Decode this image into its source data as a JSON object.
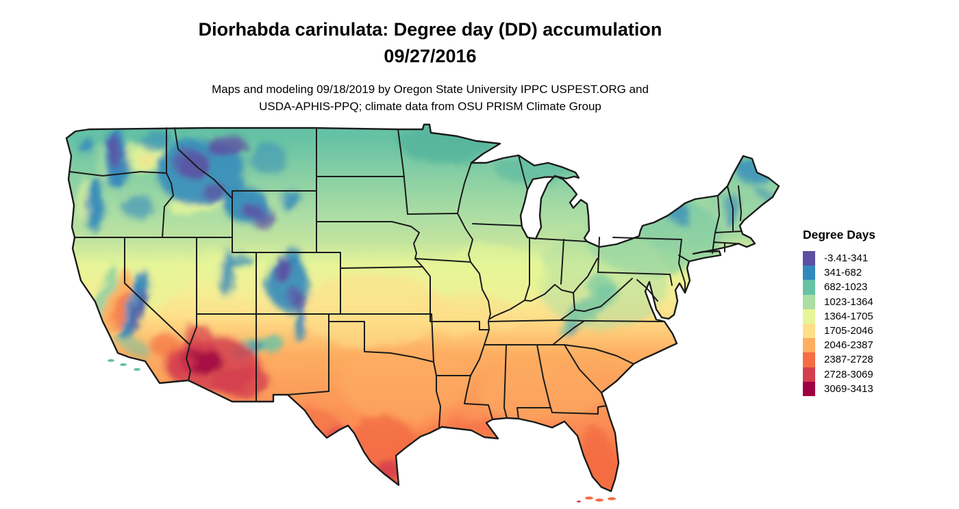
{
  "title": {
    "line1": "Diorhabda carinulata: Degree day (DD) accumulation",
    "line2": "09/27/2016"
  },
  "subtitle": {
    "line1": "Maps and modeling 09/18/2019 by Oregon State University IPPC USPEST.ORG and",
    "line2": "USDA-APHIS-PPQ; climate data from OSU PRISM Climate Group"
  },
  "legend": {
    "title": "Degree Days",
    "entries": [
      {
        "label": "-3.41-341",
        "color": "#5e4fa2"
      },
      {
        "label": "341-682",
        "color": "#3288bd"
      },
      {
        "label": "682-1023",
        "color": "#66c2a5"
      },
      {
        "label": "1023-1364",
        "color": "#abdda4"
      },
      {
        "label": "1364-1705",
        "color": "#e6f598"
      },
      {
        "label": "1705-2046",
        "color": "#fee08b"
      },
      {
        "label": "2046-2387",
        "color": "#fdae61"
      },
      {
        "label": "2387-2728",
        "color": "#f46d43"
      },
      {
        "label": "2728-3069",
        "color": "#d53e4f"
      },
      {
        "label": "3069-3413",
        "color": "#9e0142"
      }
    ]
  },
  "map": {
    "colors": {
      "background": "#ffffff",
      "state_border": "#1a1a1a"
    }
  }
}
